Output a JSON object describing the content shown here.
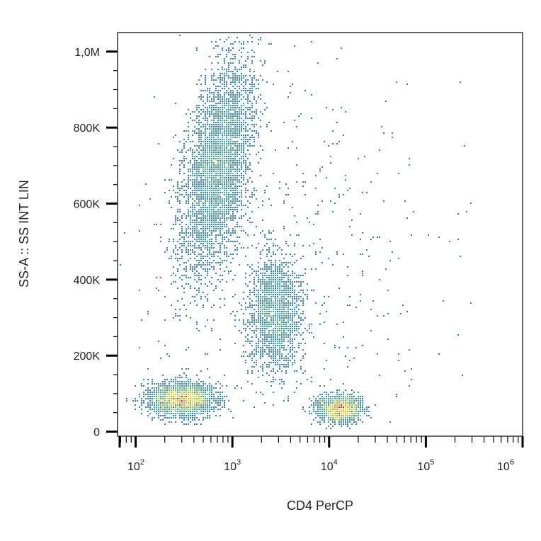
{
  "chart_data": {
    "type": "scatter",
    "title": "",
    "xlabel": "CD4 PerCP",
    "ylabel": "SS-A :: SS INT LIN",
    "x_scale": "log",
    "xlim": [
      65,
      1000000
    ],
    "ylim": [
      -12000,
      1050000
    ],
    "x_ticks": [
      {
        "value": 100,
        "base": "10",
        "exp": "2"
      },
      {
        "value": 1000,
        "base": "10",
        "exp": "3"
      },
      {
        "value": 10000,
        "base": "10",
        "exp": "4"
      },
      {
        "value": 100000,
        "base": "10",
        "exp": "5"
      },
      {
        "value": 1000000,
        "base": "10",
        "exp": "6"
      }
    ],
    "y_ticks": [
      {
        "value": 0,
        "label": "0"
      },
      {
        "value": 200000,
        "label": "200K"
      },
      {
        "value": 400000,
        "label": "400K"
      },
      {
        "value": 600000,
        "label": "600K"
      },
      {
        "value": 800000,
        "label": "800K"
      },
      {
        "value": 1000000,
        "label": "1,0M"
      }
    ],
    "grid": false,
    "density_colors": [
      "#2b3a9a",
      "#2e7fc4",
      "#27b3a8",
      "#7cc84a",
      "#e6e22a",
      "#f39c1f",
      "#e8231c"
    ],
    "populations": [
      {
        "x_center": 700,
        "x_spread_decades": 0.16,
        "y_center": 690000,
        "y_spread": 140000,
        "tilt": 0.55,
        "count": 4200
      },
      {
        "x_center": 300,
        "x_spread_decades": 0.17,
        "y_center": 85000,
        "y_spread": 22000,
        "tilt": 0.0,
        "count": 2400
      },
      {
        "x_center": 2800,
        "x_spread_decades": 0.14,
        "y_center": 310000,
        "y_spread": 75000,
        "tilt": 0.0,
        "count": 1900
      },
      {
        "x_center": 13000,
        "x_spread_decades": 0.11,
        "y_center": 60000,
        "y_spread": 18000,
        "tilt": 0.0,
        "count": 1500
      },
      {
        "x_center": 3500,
        "x_spread_decades": 0.75,
        "y_center": 480000,
        "y_spread": 300000,
        "tilt": 0.0,
        "count": 500
      }
    ]
  }
}
